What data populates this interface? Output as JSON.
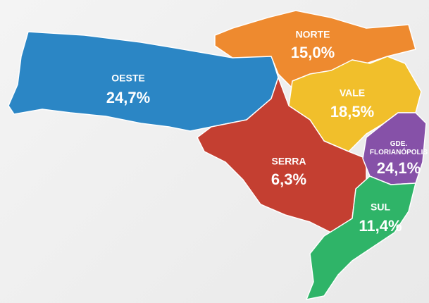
{
  "chart_data": {
    "type": "map",
    "categories": [
      "OESTE",
      "NORTE",
      "VALE",
      "SERRA",
      "GDE. FLORIANÓPOLIS",
      "SUL"
    ],
    "values": [
      24.7,
      15.0,
      18.5,
      6.3,
      24.1,
      11.4
    ],
    "value_labels": [
      "24,7%",
      "15,0%",
      "18,5%",
      "6,3%",
      "24,1%",
      "11,4%"
    ],
    "colors": [
      "#2b86c5",
      "#ee8a2f",
      "#f1bf2b",
      "#c43f31",
      "#8651a8",
      "#2fb468"
    ]
  }
}
